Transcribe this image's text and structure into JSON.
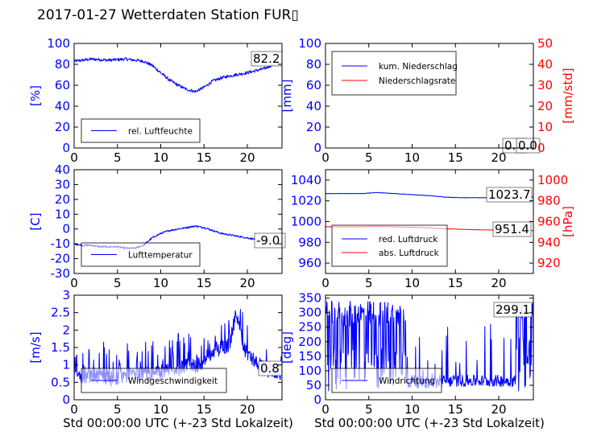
{
  "title": "2017-01-27 Wetterdaten Station FUR▯",
  "colors": {
    "blue": "#0000ff",
    "red": "#ff0000",
    "black": "#000000"
  },
  "chart_data": [
    {
      "id": "humidity",
      "type": "line",
      "xlim": [
        0,
        24
      ],
      "ylim": [
        0,
        100
      ],
      "xticks": [
        0,
        5,
        10,
        15,
        20
      ],
      "yticks": [
        0,
        20,
        40,
        60,
        80,
        100
      ],
      "ylabel": "[%]",
      "legend_position": "lower-left",
      "current_value": "82.2",
      "series": [
        {
          "name": "rel. Luftfeuchte",
          "color": "#0000ff",
          "noise": 1.5,
          "x": [
            0,
            2,
            4,
            6,
            8,
            9,
            10,
            11,
            12,
            13,
            14,
            15,
            16,
            17,
            18,
            20,
            21,
            22,
            23,
            24
          ],
          "y": [
            83,
            85,
            84,
            85,
            83,
            79,
            72,
            65,
            60,
            56,
            54,
            58,
            64,
            67,
            69,
            72,
            74,
            76,
            80,
            81
          ]
        }
      ]
    },
    {
      "id": "precip",
      "type": "line",
      "xlim": [
        0,
        24
      ],
      "ylim": [
        0,
        100
      ],
      "xticks": [
        0,
        5,
        10,
        15,
        20
      ],
      "yticks": [
        0,
        20,
        40,
        60,
        80,
        100
      ],
      "ylabel": "[mm]",
      "y2lim": [
        0,
        50
      ],
      "y2ticks": [
        0,
        10,
        20,
        30,
        40,
        50
      ],
      "y2label": "[mm/std]",
      "legend_position": "upper-left",
      "current_value": "0.0",
      "current_value2": "0.0",
      "series": [
        {
          "name": "kum. Niederschlag",
          "color": "#0000ff",
          "axis": "left",
          "noise": 0,
          "x": [
            0,
            24
          ],
          "y": [
            0,
            0
          ]
        },
        {
          "name": "Niederschlagsrate",
          "color": "#ff0000",
          "axis": "right",
          "noise": 0,
          "x": [
            0,
            24
          ],
          "y": [
            0,
            0
          ]
        }
      ]
    },
    {
      "id": "temperature",
      "type": "line",
      "xlim": [
        0,
        24
      ],
      "ylim": [
        -30,
        40
      ],
      "xticks": [
        0,
        5,
        10,
        15,
        20
      ],
      "yticks": [
        -30,
        -20,
        -10,
        0,
        10,
        20,
        30,
        40
      ],
      "ylabel": "[C]",
      "legend_position": "lower-left",
      "current_value": "-9.0",
      "series": [
        {
          "name": "Lufttemperatur",
          "color": "#0000ff",
          "noise": 0.6,
          "x": [
            0,
            1,
            2,
            3,
            4,
            5,
            6,
            7,
            8,
            9,
            10,
            11,
            12,
            13,
            14,
            15,
            16,
            17,
            18,
            19,
            20,
            21,
            22,
            23,
            24
          ],
          "y": [
            -10,
            -11,
            -11,
            -12,
            -12,
            -12,
            -13,
            -13,
            -11,
            -6,
            -3,
            -1,
            0,
            1,
            2,
            1,
            -1,
            -3,
            -4,
            -5,
            -6,
            -7,
            -8,
            -8,
            -9
          ]
        }
      ]
    },
    {
      "id": "pressure",
      "type": "line",
      "xlim": [
        0,
        24
      ],
      "ylim": [
        950,
        1050
      ],
      "xticks": [
        0,
        5,
        10,
        15,
        20
      ],
      "yticks": [
        960,
        980,
        1000,
        1020,
        1040
      ],
      "ylabel": "",
      "y2lim": [
        910,
        1010
      ],
      "y2ticks": [
        920,
        940,
        960,
        980,
        1000
      ],
      "y2label": "[hPa]",
      "legend_position": "lower-left",
      "current_value": "1023.7",
      "current_value2": "951.4",
      "series": [
        {
          "name": "red. Luftdruck",
          "color": "#0000ff",
          "axis": "left",
          "noise": 0.2,
          "x": [
            0,
            2,
            4,
            6,
            8,
            10,
            12,
            14,
            16,
            18,
            20,
            22,
            24
          ],
          "y": [
            1027,
            1027,
            1027,
            1028,
            1027,
            1026,
            1025,
            1023.5,
            1023,
            1023,
            1023.3,
            1023.6,
            1023.7
          ]
        },
        {
          "name": "abs. Luftdruck",
          "color": "#ff0000",
          "axis": "right",
          "noise": 0.1,
          "x": [
            0,
            2,
            4,
            6,
            8,
            10,
            12,
            14,
            16,
            18,
            20,
            22,
            24
          ],
          "y": [
            955,
            955,
            955,
            955.2,
            955,
            954.5,
            954,
            953,
            952.5,
            952,
            951.8,
            951.6,
            951.4
          ]
        }
      ]
    },
    {
      "id": "windspeed",
      "type": "line",
      "xlim": [
        0,
        24
      ],
      "ylim": [
        0,
        3
      ],
      "xticks": [
        0,
        5,
        10,
        15,
        20
      ],
      "yticks": [
        0,
        0.5,
        1,
        1.5,
        2,
        2.5,
        3
      ],
      "ylabel": "[m/s]",
      "xlabel": "Std 00:00:00 UTC (+-23 Std Lokalzeit)",
      "legend_position": "lower-left",
      "current_value": "0.8",
      "series": [
        {
          "name": "Windgeschwindigkeit",
          "color": "#0000ff",
          "noise": 0.45,
          "spiky": true,
          "x": [
            0,
            2,
            4,
            6,
            8,
            10,
            12,
            14,
            15,
            16,
            17,
            18,
            18.7,
            19,
            19.5,
            20,
            21,
            22,
            23,
            24
          ],
          "y": [
            0.6,
            0.7,
            0.6,
            0.7,
            0.7,
            0.8,
            0.9,
            1.0,
            1.1,
            1.4,
            1.5,
            1.6,
            2.5,
            2.3,
            1.6,
            1.3,
            1.1,
            0.9,
            0.8,
            0.8
          ]
        }
      ]
    },
    {
      "id": "winddir",
      "type": "line",
      "xlim": [
        0,
        24
      ],
      "ylim": [
        0,
        360
      ],
      "xticks": [
        0,
        5,
        10,
        15,
        20
      ],
      "yticks": [
        0,
        50,
        100,
        150,
        200,
        250,
        300,
        350
      ],
      "ylabel": "[deg]",
      "xlabel": "Std 00:00:00 UTC (+-23 Std Lokalzeit)",
      "legend_position": "lower-left",
      "current_value": "299.1",
      "series": [
        {
          "name": "Windrichtung",
          "color": "#0000ff",
          "noise": 0,
          "direction": true,
          "x": [
            0,
            24
          ],
          "y": [
            300,
            299
          ]
        }
      ]
    }
  ]
}
